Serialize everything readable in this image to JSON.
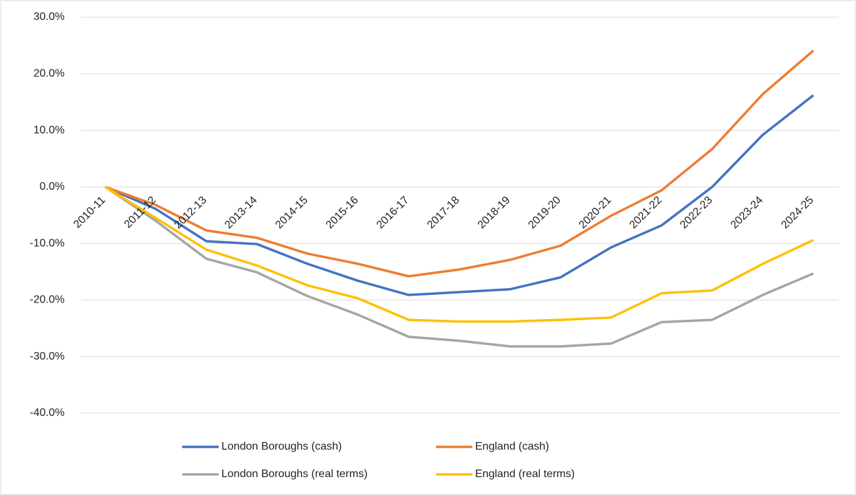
{
  "chart_data": {
    "type": "line",
    "categories": [
      "2010-11",
      "2011-12",
      "2012-13",
      "2013-14",
      "2014-15",
      "2015-16",
      "2016-17",
      "2017-18",
      "2018-19",
      "2019-20",
      "2020-21",
      "2021-22",
      "2022-23",
      "2023-24",
      "2024-25"
    ],
    "series": [
      {
        "name": "London Boroughs (cash)",
        "color": "#4472c4",
        "values": [
          0,
          -3.9,
          -9.6,
          -10.1,
          -13.6,
          -16.6,
          -19.1,
          -18.6,
          -18.1,
          -16.0,
          -10.7,
          -6.8,
          0,
          9.2,
          16.2
        ]
      },
      {
        "name": "England (cash)",
        "color": "#ed7d31",
        "values": [
          0,
          -3.2,
          -7.7,
          -9.0,
          -11.8,
          -13.6,
          -15.8,
          -14.6,
          -12.9,
          -10.4,
          -5.1,
          -0.6,
          6.7,
          16.4,
          24.1
        ]
      },
      {
        "name": "London Boroughs (real terms)",
        "color": "#a5a5a5",
        "values": [
          0,
          -6.0,
          -12.7,
          -15.1,
          -19.3,
          -22.6,
          -26.5,
          -27.2,
          -28.2,
          -28.2,
          -27.7,
          -23.9,
          -23.5,
          -19.1,
          -15.3
        ]
      },
      {
        "name": "England (real terms)",
        "color": "#ffc000",
        "values": [
          0,
          -5.5,
          -11.1,
          -13.9,
          -17.4,
          -19.7,
          -23.5,
          -23.8,
          -23.8,
          -23.5,
          -23.1,
          -18.8,
          -18.3,
          -13.6,
          -9.4
        ]
      }
    ],
    "ylim": [
      -40,
      30
    ],
    "yticks": [
      {
        "value": -40,
        "label": "-40.0%"
      },
      {
        "value": -30,
        "label": "-30.0%"
      },
      {
        "value": -20,
        "label": "-20.0%"
      },
      {
        "value": -10,
        "label": "-10.0%"
      },
      {
        "value": 0,
        "label": "0.0%"
      },
      {
        "value": 10,
        "label": "10.0%"
      },
      {
        "value": 20,
        "label": "20.0%"
      },
      {
        "value": 30,
        "label": "30.0%"
      }
    ],
    "grid": true
  }
}
